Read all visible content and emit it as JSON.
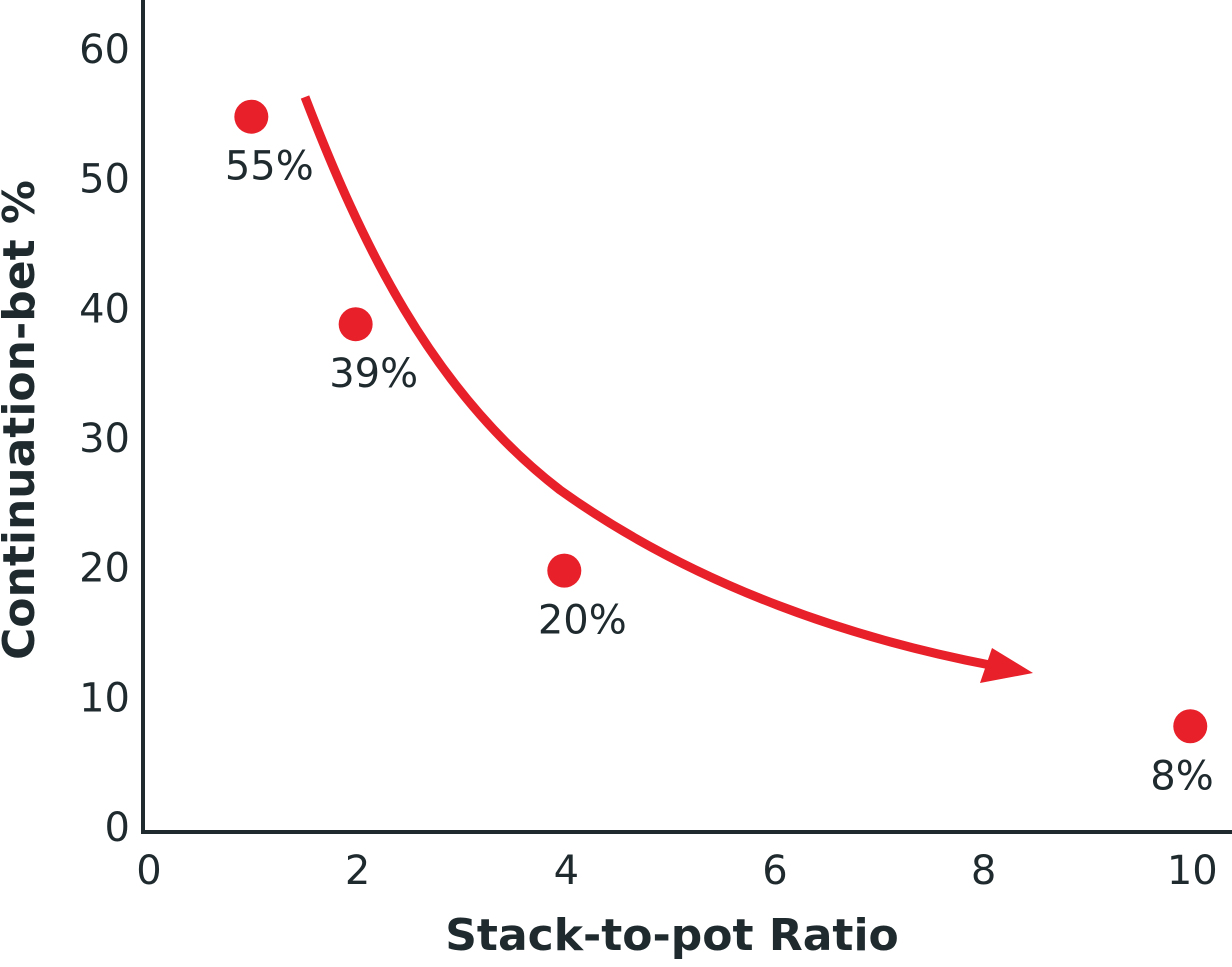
{
  "chart_data": {
    "type": "scatter",
    "x_label": "Stack-to-pot Ratio",
    "y_label": "Continuation-bet %",
    "x": [
      1,
      2,
      4,
      10
    ],
    "values": [
      55,
      39,
      20,
      8
    ],
    "value_labels": [
      "55%",
      "39%",
      "20%",
      "8%"
    ],
    "color": "#e8202a",
    "xlim": [
      0,
      10.4
    ],
    "xticks": [
      0,
      2,
      4,
      6,
      8,
      10
    ],
    "ylim": [
      0,
      64
    ],
    "yticks": [
      0,
      10,
      20,
      30,
      40,
      50,
      60
    ]
  }
}
